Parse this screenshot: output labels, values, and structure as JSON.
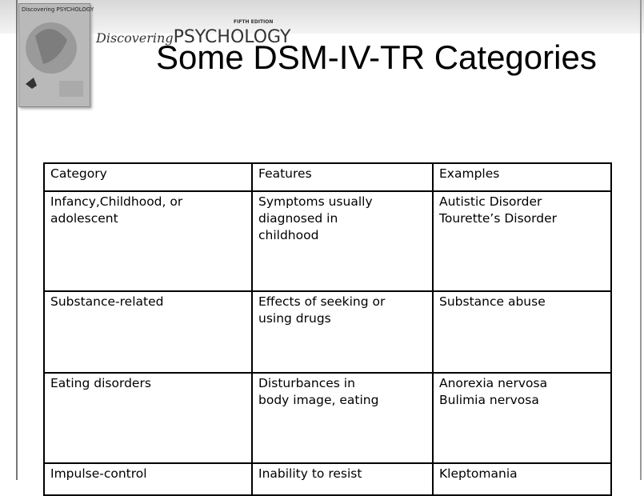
{
  "header": {
    "cover_title": "Discovering PSYCHOLOGY",
    "edition": "FIFTH EDITION",
    "book_title_script": "Discovering",
    "book_title": "PSYCHOLOGY"
  },
  "title": "Some DSM-IV-TR Categories",
  "table": {
    "header": [
      "Category",
      "Features",
      "Examples"
    ],
    "rows": [
      [
        [
          "Infancy,Childhood, or",
          "adolescent"
        ],
        [
          "Symptoms usually",
          "diagnosed in",
          "childhood"
        ],
        [
          "Autistic Disorder",
          "Tourette’s Disorder"
        ]
      ],
      [
        [
          "Substance-related"
        ],
        [
          "Effects of seeking or",
          "using drugs"
        ],
        [
          "Substance abuse"
        ]
      ],
      [
        [
          "Eating disorders"
        ],
        [
          "Disturbances in",
          "body image, eating"
        ],
        [
          "Anorexia nervosa",
          "Bulimia nervosa"
        ]
      ],
      [
        [
          "Impulse-control"
        ],
        [
          "Inability to resist"
        ],
        [
          "Kleptomania"
        ]
      ]
    ]
  }
}
